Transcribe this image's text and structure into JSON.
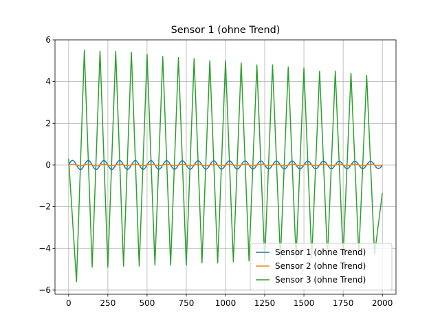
{
  "chart_data": {
    "type": "line",
    "title": "Sensor 1 (ohne Trend)",
    "xlabel": "",
    "ylabel": "",
    "xlim": [
      -87,
      2087
    ],
    "ylim": [
      -6.2,
      6.0
    ],
    "xticks": [
      0,
      250,
      500,
      750,
      1000,
      1250,
      1500,
      1750,
      2000
    ],
    "yticks": [
      -6,
      -4,
      -2,
      0,
      2,
      4,
      6
    ],
    "grid": true,
    "legend_position": "lower-right",
    "series": [
      {
        "name": "Sensor 1 (ohne Trend)",
        "color": "#1f77b4",
        "model": {
          "form": "sine",
          "amplitude": 0.22,
          "period": 100,
          "x_start": 0,
          "x_end": 2000,
          "samples_per_period": 20,
          "decay_to": 0.8
        }
      },
      {
        "name": "Sensor 2 (ohne Trend)",
        "color": "#ff7f0e",
        "model": {
          "form": "sine",
          "amplitude": 0.04,
          "period": 100,
          "x_start": 0,
          "x_end": 2000,
          "samples_per_period": 20,
          "decay_to": 1.0
        }
      },
      {
        "name": "Sensor 3 (ohne Trend)",
        "color": "#2ca02c",
        "points": [
          [
            0,
            0.3
          ],
          [
            50,
            -5.6
          ],
          [
            100,
            5.5
          ],
          [
            150,
            -4.9
          ],
          [
            200,
            5.45
          ],
          [
            250,
            -4.9
          ],
          [
            300,
            5.45
          ],
          [
            350,
            -4.85
          ],
          [
            400,
            5.4
          ],
          [
            450,
            -4.85
          ],
          [
            500,
            5.3
          ],
          [
            550,
            -4.8
          ],
          [
            600,
            5.2
          ],
          [
            650,
            -4.8
          ],
          [
            700,
            5.15
          ],
          [
            750,
            -4.8
          ],
          [
            800,
            5.1
          ],
          [
            850,
            -4.7
          ],
          [
            900,
            5.0
          ],
          [
            950,
            -4.7
          ],
          [
            1000,
            5.0
          ],
          [
            1050,
            -4.65
          ],
          [
            1100,
            4.9
          ],
          [
            1150,
            -4.6
          ],
          [
            1200,
            4.8
          ],
          [
            1250,
            -4.6
          ],
          [
            1300,
            4.8
          ],
          [
            1350,
            -4.5
          ],
          [
            1400,
            4.7
          ],
          [
            1450,
            -4.5
          ],
          [
            1500,
            4.65
          ],
          [
            1550,
            -4.45
          ],
          [
            1600,
            4.5
          ],
          [
            1650,
            -4.4
          ],
          [
            1700,
            4.5
          ],
          [
            1750,
            -4.4
          ],
          [
            1800,
            4.4
          ],
          [
            1850,
            -4.3
          ],
          [
            1900,
            4.3
          ],
          [
            1950,
            -4.3
          ],
          [
            2000,
            -1.35
          ]
        ]
      }
    ]
  }
}
